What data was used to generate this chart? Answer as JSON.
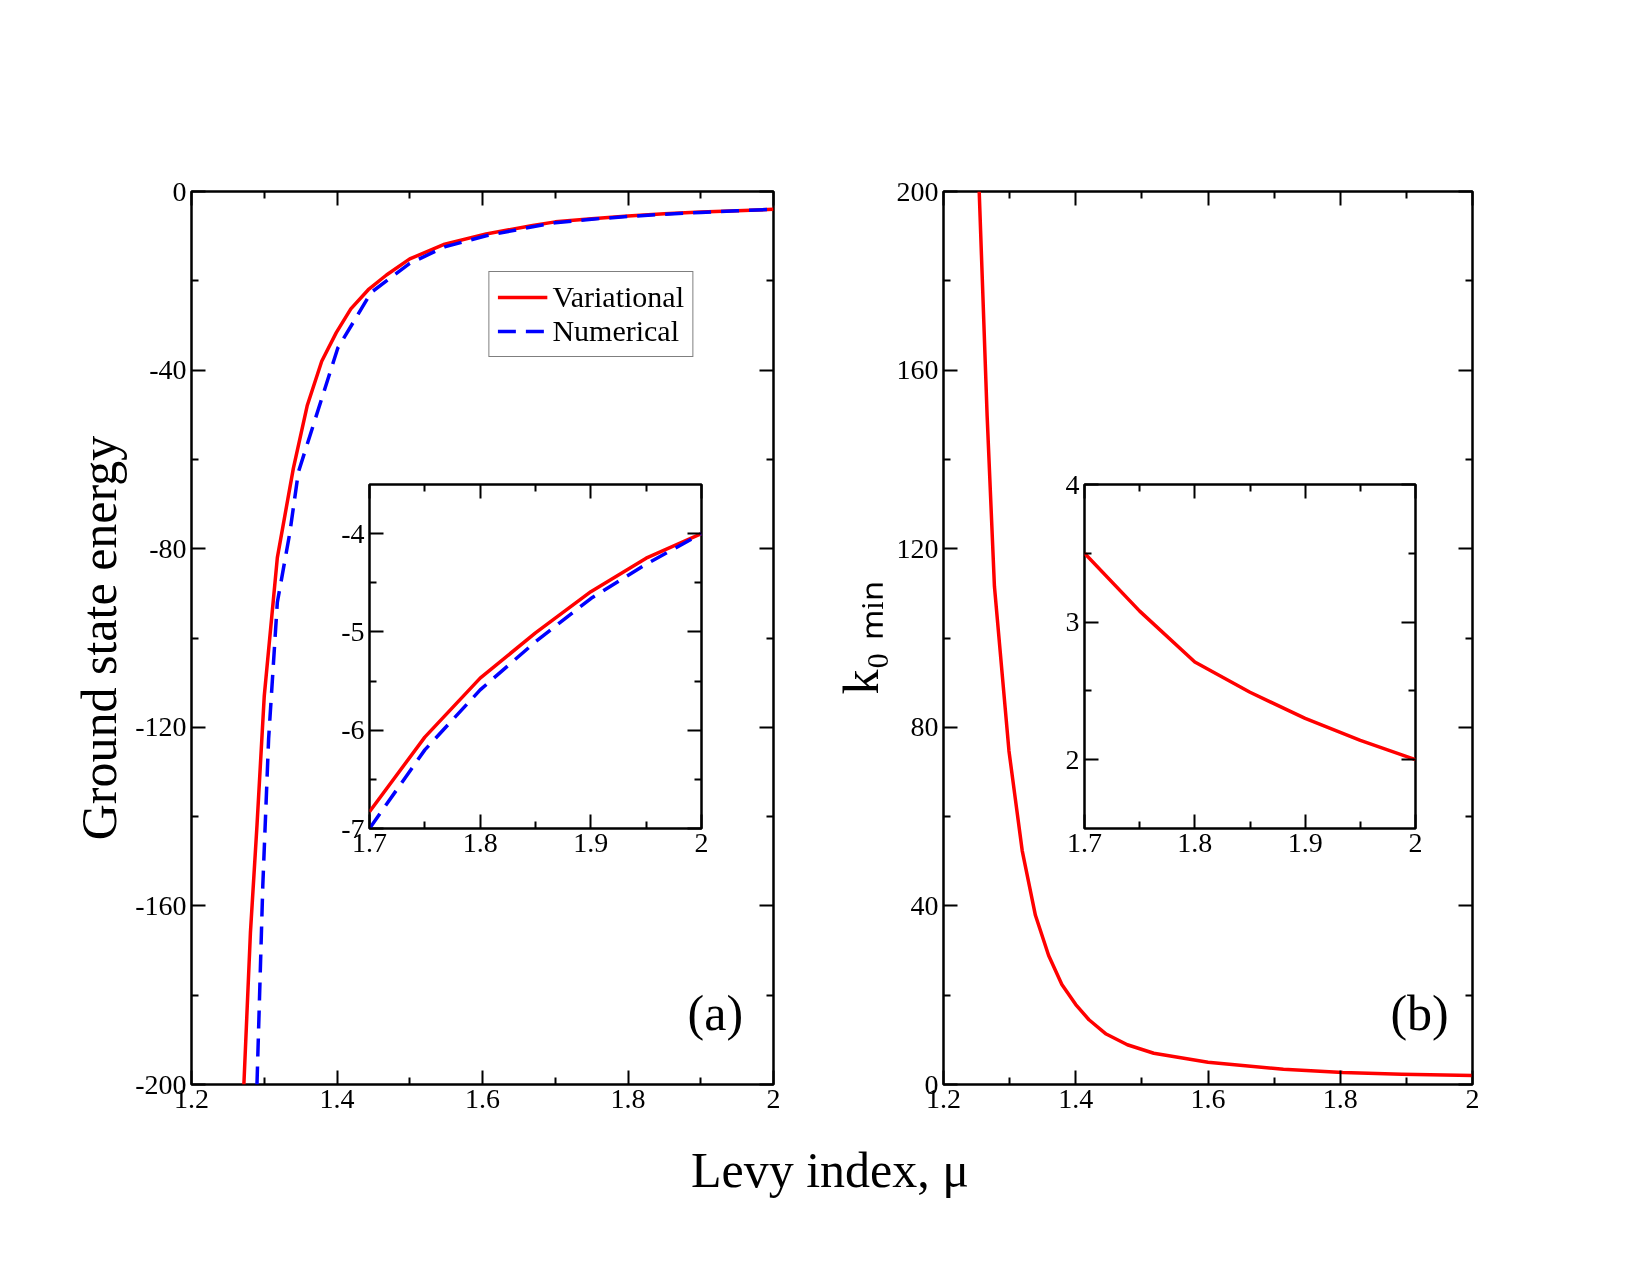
{
  "chart_data": [
    {
      "type": "line",
      "xlabel": "Levy index, μ",
      "ylabel": "Ground state energy",
      "xlim": [
        1.2,
        2
      ],
      "ylim": [
        -200,
        0
      ],
      "xticks": [
        1.2,
        {
          "value": 1.3,
          "label": null
        },
        1.4,
        {
          "value": 1.5,
          "label": null
        },
        1.6,
        {
          "value": 1.7,
          "label": null
        },
        1.8,
        {
          "value": 1.9,
          "label": null
        },
        2
      ],
      "yticks": [
        -200,
        {
          "value": -180,
          "label": null
        },
        -160,
        {
          "value": -140,
          "label": null
        },
        -120,
        {
          "value": -100,
          "label": null
        },
        -80,
        {
          "value": -60,
          "label": null
        },
        -40,
        {
          "value": -20,
          "label": null
        },
        0
      ],
      "grid": false,
      "legend": "top right",
      "annotations": [
        "(a)"
      ],
      "series": [
        {
          "name": "Variational",
          "color": "#ff0000",
          "line_style": "solid",
          "x": [
            1.272,
            1.281,
            1.29,
            1.3,
            1.318,
            1.34,
            1.359,
            1.379,
            1.399,
            1.419,
            1.443,
            1.468,
            1.5,
            1.548,
            1.605,
            1.669,
            1.7,
            1.75,
            1.8,
            1.85,
            1.9,
            1.95,
            2.0
          ],
          "values": [
            -200,
            -166,
            -142,
            -113,
            -82,
            -62,
            -48,
            -38,
            -31.6,
            -26.3,
            -22,
            -18.7,
            -15.1,
            -11.8,
            -9.5,
            -7.6,
            -6.8,
            -6.1,
            -5.5,
            -5.0,
            -4.6,
            -4.3,
            -4.0
          ]
        },
        {
          "name": "Numerical",
          "color": "#0000ff",
          "line_style": "dashed",
          "x": [
            1.29,
            1.298,
            1.306,
            1.318,
            1.335,
            1.347,
            1.401,
            1.447,
            1.5,
            1.548,
            1.605,
            1.669,
            1.7,
            1.75,
            1.8,
            1.85,
            1.9,
            1.95,
            2.0
          ],
          "values": [
            -200,
            -155.5,
            -122.6,
            -92,
            -76.6,
            -62.8,
            -35.1,
            -22.6,
            -16.1,
            -12.4,
            -9.9,
            -7.9,
            -7.0,
            -6.2,
            -5.6,
            -5.1,
            -4.7,
            -4.3,
            -4.0
          ]
        }
      ]
    },
    {
      "type": "line",
      "xlim": [
        1.7,
        2
      ],
      "ylim": [
        -7,
        -3.5
      ],
      "xticks": [
        1.7,
        {
          "value": 1.75,
          "label": null
        },
        1.8,
        {
          "value": 1.85,
          "label": null
        },
        1.9,
        {
          "value": 1.95,
          "label": null
        },
        2
      ],
      "yticks": [
        -7,
        {
          "value": -6.5,
          "label": null
        },
        -6,
        {
          "value": -5.5,
          "label": null
        },
        -5,
        {
          "value": -4.5,
          "label": null
        },
        -4
      ],
      "grid": false,
      "series": [
        {
          "color": "#ff0000",
          "line_style": "solid",
          "x": [
            1.7,
            1.75,
            1.8,
            1.85,
            1.9,
            1.95,
            2.0
          ],
          "values": [
            -6.83,
            -6.07,
            -5.47,
            -5.01,
            -4.59,
            -4.25,
            -4.0
          ]
        },
        {
          "color": "#0000ff",
          "line_style": "dashed",
          "x": [
            1.7,
            1.75,
            1.8,
            1.85,
            1.9,
            1.95,
            2.0
          ],
          "values": [
            -7.0,
            -6.2,
            -5.59,
            -5.1,
            -4.66,
            -4.31,
            -4.0
          ]
        }
      ]
    },
    {
      "type": "line",
      "ylabel": "k₀ ₘᵢₙ",
      "xlim": [
        1.2,
        2
      ],
      "ylim": [
        0,
        200
      ],
      "xticks": [
        1.2,
        {
          "value": 1.3,
          "label": null
        },
        1.4,
        {
          "value": 1.5,
          "label": null
        },
        1.6,
        {
          "value": 1.7,
          "label": null
        },
        1.8,
        {
          "value": 1.9,
          "label": null
        },
        2
      ],
      "yticks": [
        0,
        {
          "value": 20,
          "label": null
        },
        40,
        {
          "value": 60,
          "label": null
        },
        80,
        {
          "value": 100,
          "label": null
        },
        120,
        {
          "value": 140,
          "label": null
        },
        160,
        {
          "value": 180,
          "label": null
        },
        200
      ],
      "grid": false,
      "annotations": [
        "(b)"
      ],
      "series": [
        {
          "color": "#ff0000",
          "line_style": "solid",
          "x": [
            1.254,
            1.266,
            1.277,
            1.299,
            1.319,
            1.339,
            1.359,
            1.379,
            1.4,
            1.42,
            1.446,
            1.478,
            1.518,
            1.6,
            1.714,
            1.804,
            1.893,
            2.0
          ],
          "values": [
            200,
            149.7,
            111.6,
            74.7,
            52.4,
            37.9,
            28.9,
            22.4,
            17.9,
            14.5,
            11.3,
            8.9,
            7.0,
            5.0,
            3.4,
            2.7,
            2.3,
            2.0
          ]
        }
      ]
    },
    {
      "type": "line",
      "xlim": [
        1.7,
        2
      ],
      "ylim": [
        1.5,
        4
      ],
      "xticks": [
        1.7,
        {
          "value": 1.75,
          "label": null
        },
        1.8,
        {
          "value": 1.85,
          "label": null
        },
        1.9,
        {
          "value": 1.95,
          "label": null
        },
        2
      ],
      "yticks": [
        2,
        {
          "value": 2.5,
          "label": null
        },
        3,
        {
          "value": 3.5,
          "label": null
        },
        4
      ],
      "grid": false,
      "series": [
        {
          "color": "#ff0000",
          "line_style": "solid",
          "x": [
            1.7,
            1.75,
            1.8,
            1.85,
            1.9,
            1.95,
            2.0
          ],
          "values": [
            3.5,
            3.08,
            2.71,
            2.49,
            2.3,
            2.14,
            2.0
          ]
        }
      ]
    }
  ]
}
